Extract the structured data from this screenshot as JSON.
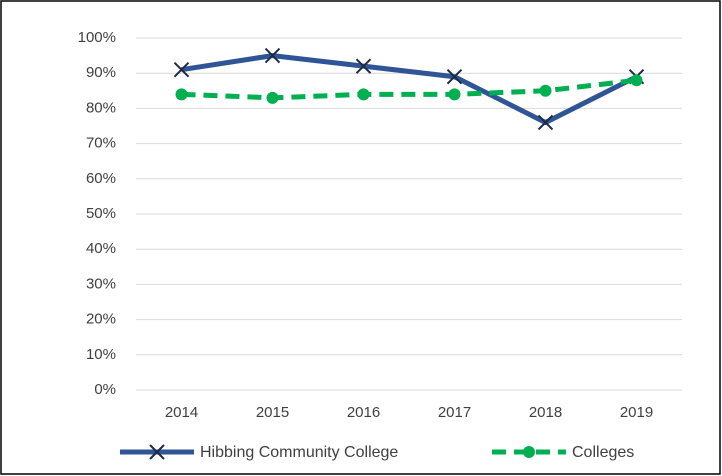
{
  "chart_data": {
    "type": "line",
    "categories": [
      "2014",
      "2015",
      "2016",
      "2017",
      "2018",
      "2019"
    ],
    "series": [
      {
        "name": "Hibbing Community College",
        "color": "#2f5597",
        "marker": "x",
        "dashed": false,
        "values": [
          91,
          95,
          92,
          89,
          76,
          89
        ]
      },
      {
        "name": "Colleges",
        "color": "#00b050",
        "marker": "circle",
        "dashed": true,
        "values": [
          84,
          83,
          84,
          84,
          85,
          88
        ]
      }
    ],
    "ylim": [
      0,
      100
    ],
    "yticks": [
      {
        "value": 0,
        "label": "0%"
      },
      {
        "value": 10,
        "label": "10%"
      },
      {
        "value": 20,
        "label": "20%"
      },
      {
        "value": 30,
        "label": "30%"
      },
      {
        "value": 40,
        "label": "40%"
      },
      {
        "value": 50,
        "label": "50%"
      },
      {
        "value": 60,
        "label": "60%"
      },
      {
        "value": 70,
        "label": "70%"
      },
      {
        "value": 80,
        "label": "80%"
      },
      {
        "value": 90,
        "label": "90%"
      },
      {
        "value": 100,
        "label": "100%"
      }
    ],
    "grid": true,
    "legend": "bottom"
  }
}
